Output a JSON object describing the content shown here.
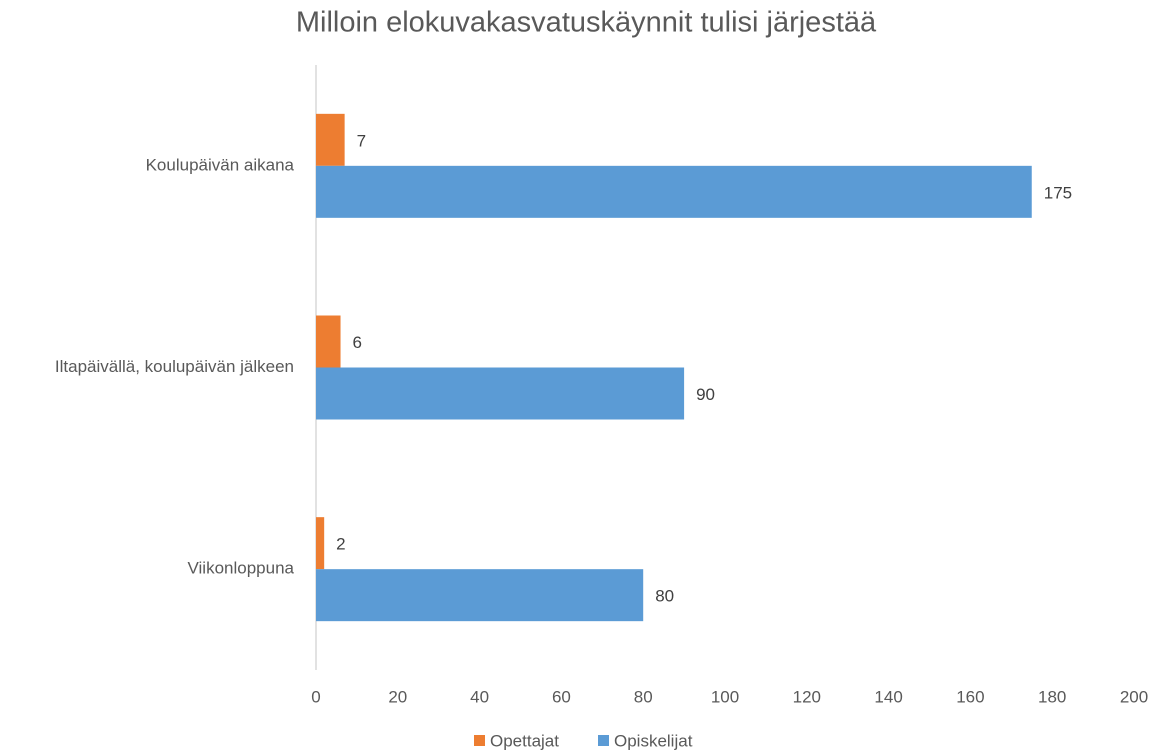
{
  "chart_data": {
    "type": "bar",
    "orientation": "horizontal",
    "title": "Milloin elokuvakasvatuskäynnit tulisi järjestää",
    "categories": [
      "Koulupäivän aikana",
      "Iltapäivällä, koulupäivän jälkeen",
      "Viikonloppuna"
    ],
    "series": [
      {
        "name": "Opettajat",
        "color": "#ed7d31",
        "values": [
          7,
          6,
          2
        ]
      },
      {
        "name": "Opiskelijat",
        "color": "#5b9bd5",
        "values": [
          175,
          90,
          80
        ]
      }
    ],
    "xlim": [
      0,
      200
    ],
    "xticks": [
      0,
      20,
      40,
      60,
      80,
      100,
      120,
      140,
      160,
      180,
      200
    ],
    "grid": false,
    "legend": "bottom"
  }
}
